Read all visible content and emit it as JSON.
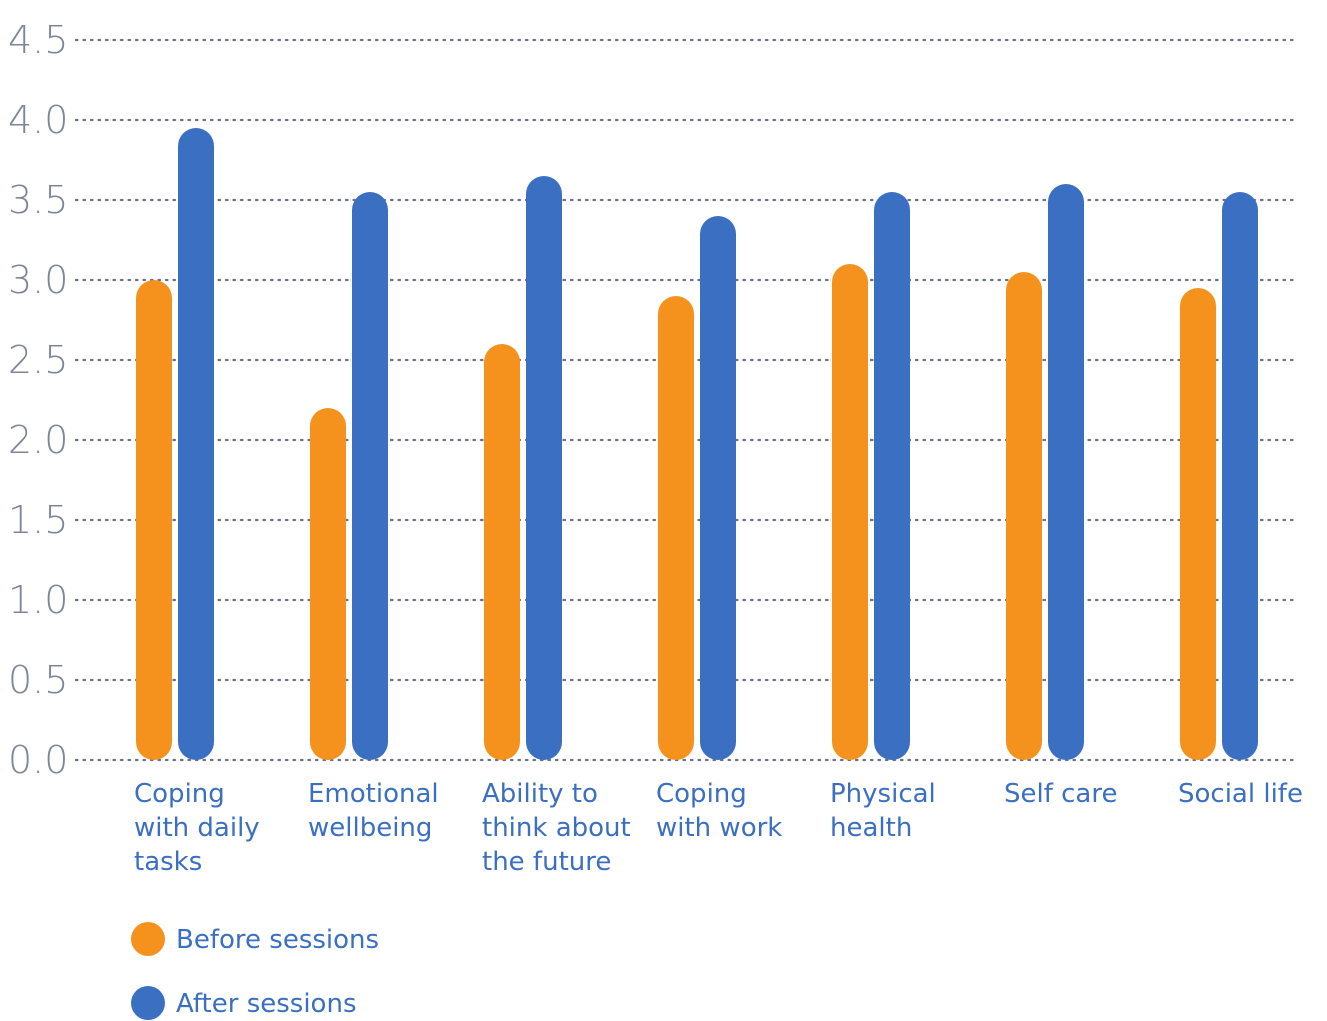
{
  "chart_data": {
    "type": "bar",
    "categories": [
      [
        "Coping",
        "with daily",
        "tasks"
      ],
      [
        "Emotional",
        "wellbeing"
      ],
      [
        "Ability to",
        "think about",
        "the future"
      ],
      [
        "Coping",
        "with work"
      ],
      [
        "Physical",
        "health"
      ],
      [
        "Self care"
      ],
      [
        "Social life"
      ]
    ],
    "series": [
      {
        "name": "Before sessions",
        "color": "#f5921e",
        "values": [
          3.0,
          2.2,
          2.6,
          2.9,
          3.1,
          3.05,
          2.95
        ]
      },
      {
        "name": "After sessions",
        "color": "#3a6fc2",
        "values": [
          3.95,
          3.55,
          3.65,
          3.4,
          3.55,
          3.6,
          3.55
        ]
      }
    ],
    "yticks": [
      "0.0",
      "0.5",
      "1.0",
      "1.5",
      "2.0",
      "2.5",
      "3.0",
      "3.5",
      "4.0",
      "4.5"
    ],
    "ylim": [
      0,
      4.5
    ],
    "grid": true,
    "legend_position": "bottom-left",
    "title": "",
    "xlabel": "",
    "ylabel": ""
  }
}
